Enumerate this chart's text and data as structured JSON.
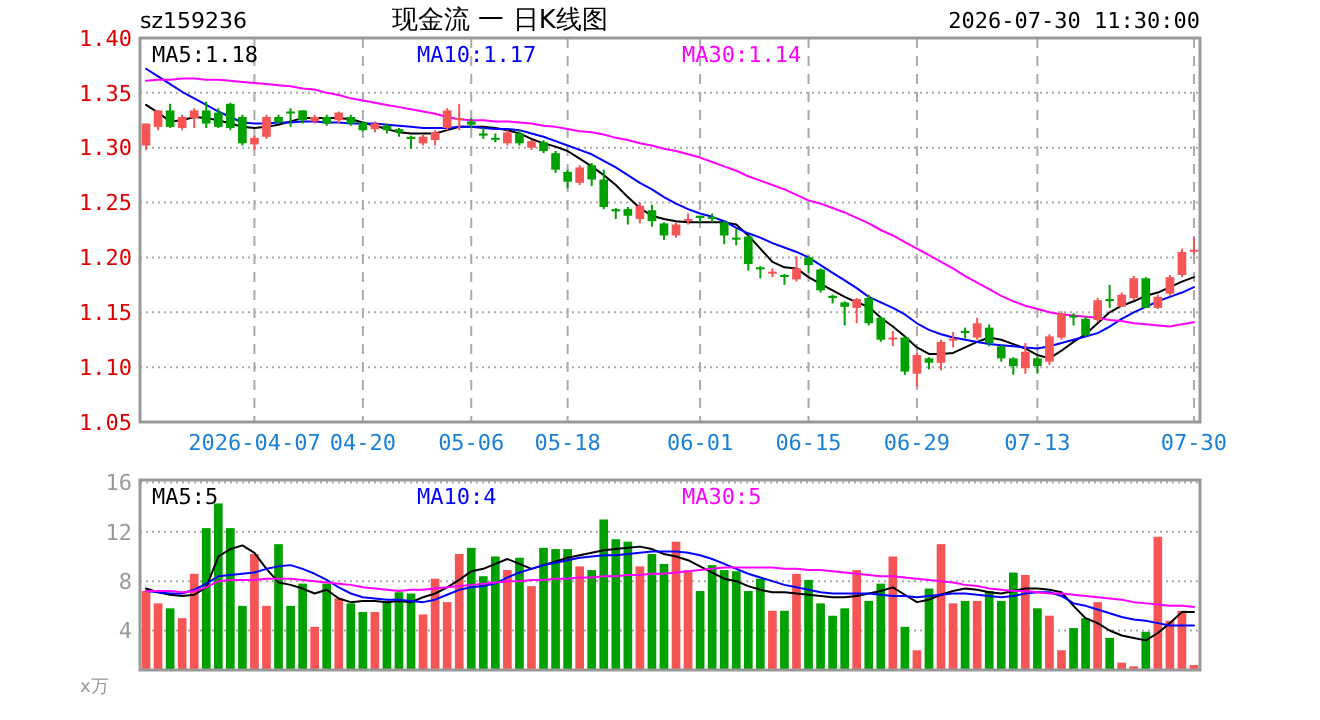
{
  "chart_data": [
    {
      "type": "candlestick",
      "title": "现金流 一 日K线图",
      "subtitle": "sz159236",
      "annotations": [
        "2026-07-30 11:30:00"
      ],
      "categories": [
        null,
        null,
        null,
        null,
        null,
        null,
        null,
        null,
        null,
        "2026-04-07",
        null,
        null,
        null,
        null,
        null,
        null,
        null,
        null,
        "04-20",
        null,
        null,
        null,
        null,
        null,
        null,
        null,
        null,
        "05-06",
        null,
        null,
        null,
        null,
        null,
        null,
        null,
        "05-18",
        null,
        null,
        null,
        null,
        null,
        null,
        null,
        null,
        null,
        null,
        "06-01",
        null,
        null,
        null,
        null,
        null,
        null,
        null,
        null,
        "06-15",
        null,
        null,
        null,
        null,
        null,
        null,
        null,
        null,
        "06-29",
        null,
        null,
        null,
        null,
        null,
        null,
        null,
        null,
        null,
        "07-13",
        null,
        null,
        null,
        null,
        null,
        null,
        null,
        null,
        null,
        null,
        null,
        null,
        "07-30"
      ],
      "ohlc": [
        [
          1.302,
          1.322,
          1.298,
          1.322
        ],
        [
          1.319,
          1.334,
          1.316,
          1.334
        ],
        [
          1.334,
          1.34,
          1.318,
          1.319
        ],
        [
          1.318,
          1.33,
          1.316,
          1.328
        ],
        [
          1.327,
          1.336,
          1.318,
          1.334
        ],
        [
          1.334,
          1.342,
          1.318,
          1.322
        ],
        [
          1.332,
          1.336,
          1.318,
          1.319
        ],
        [
          1.34,
          1.341,
          1.316,
          1.318
        ],
        [
          1.328,
          1.33,
          1.302,
          1.304
        ],
        [
          1.303,
          1.311,
          1.298,
          1.309
        ],
        [
          1.31,
          1.33,
          1.308,
          1.328
        ],
        [
          1.328,
          1.33,
          1.322,
          1.323
        ],
        [
          1.333,
          1.336,
          1.319,
          1.332
        ],
        [
          1.334,
          1.334,
          1.322,
          1.325
        ],
        [
          1.324,
          1.33,
          1.322,
          1.328
        ],
        [
          1.328,
          1.33,
          1.32,
          1.322
        ],
        [
          1.325,
          1.333,
          1.322,
          1.332
        ],
        [
          1.328,
          1.33,
          1.32,
          1.322
        ],
        [
          1.323,
          1.324,
          1.315,
          1.316
        ],
        [
          1.317,
          1.324,
          1.314,
          1.322
        ],
        [
          1.32,
          1.322,
          1.313,
          1.316
        ],
        [
          1.317,
          1.318,
          1.31,
          1.314
        ],
        [
          1.31,
          1.311,
          1.299,
          1.308
        ],
        [
          1.304,
          1.312,
          1.302,
          1.31
        ],
        [
          1.307,
          1.316,
          1.302,
          1.314
        ],
        [
          1.318,
          1.336,
          1.316,
          1.334
        ],
        [
          1.326,
          1.34,
          1.316,
          1.327
        ],
        [
          1.324,
          1.327,
          1.318,
          1.321
        ],
        [
          1.313,
          1.318,
          1.308,
          1.311
        ],
        [
          1.309,
          1.313,
          1.305,
          1.308
        ],
        [
          1.304,
          1.316,
          1.302,
          1.314
        ],
        [
          1.313,
          1.316,
          1.302,
          1.304
        ],
        [
          1.3,
          1.307,
          1.298,
          1.306
        ],
        [
          1.305,
          1.307,
          1.295,
          1.297
        ],
        [
          1.295,
          1.297,
          1.277,
          1.28
        ],
        [
          1.278,
          1.28,
          1.263,
          1.269
        ],
        [
          1.268,
          1.284,
          1.266,
          1.282
        ],
        [
          1.284,
          1.286,
          1.265,
          1.271
        ],
        [
          1.271,
          1.28,
          1.244,
          1.246
        ],
        [
          1.244,
          1.245,
          1.235,
          1.242
        ],
        [
          1.244,
          1.246,
          1.23,
          1.238
        ],
        [
          1.235,
          1.25,
          1.231,
          1.247
        ],
        [
          1.243,
          1.248,
          1.228,
          1.233
        ],
        [
          1.231,
          1.232,
          1.216,
          1.22
        ],
        [
          1.22,
          1.232,
          1.218,
          1.23
        ],
        [
          1.234,
          1.24,
          1.23,
          1.235
        ],
        [
          1.238,
          1.238,
          1.232,
          1.236
        ],
        [
          1.237,
          1.24,
          1.232,
          1.236
        ],
        [
          1.232,
          1.233,
          1.212,
          1.22
        ],
        [
          1.218,
          1.226,
          1.211,
          1.217
        ],
        [
          1.219,
          1.22,
          1.188,
          1.194
        ],
        [
          1.191,
          1.192,
          1.181,
          1.19
        ],
        [
          1.186,
          1.19,
          1.182,
          1.187
        ],
        [
          1.184,
          1.185,
          1.175,
          1.183
        ],
        [
          1.18,
          1.201,
          1.178,
          1.19
        ],
        [
          1.2,
          1.201,
          1.186,
          1.193
        ],
        [
          1.189,
          1.19,
          1.168,
          1.17
        ],
        [
          1.165,
          1.166,
          1.158,
          1.163
        ],
        [
          1.159,
          1.16,
          1.138,
          1.155
        ],
        [
          1.154,
          1.163,
          1.14,
          1.162
        ],
        [
          1.163,
          1.166,
          1.138,
          1.14
        ],
        [
          1.145,
          1.146,
          1.123,
          1.125
        ],
        [
          1.126,
          1.133,
          1.119,
          1.127
        ],
        [
          1.127,
          1.128,
          1.093,
          1.096
        ],
        [
          1.094,
          1.113,
          1.082,
          1.111
        ],
        [
          1.108,
          1.109,
          1.098,
          1.104
        ],
        [
          1.104,
          1.125,
          1.097,
          1.123
        ],
        [
          1.125,
          1.132,
          1.118,
          1.126
        ],
        [
          1.133,
          1.136,
          1.126,
          1.132
        ],
        [
          1.127,
          1.145,
          1.125,
          1.14
        ],
        [
          1.136,
          1.139,
          1.119,
          1.122
        ],
        [
          1.119,
          1.12,
          1.105,
          1.108
        ],
        [
          1.108,
          1.109,
          1.093,
          1.101
        ],
        [
          1.099,
          1.122,
          1.094,
          1.114
        ],
        [
          1.108,
          1.11,
          1.094,
          1.101
        ],
        [
          1.105,
          1.13,
          1.102,
          1.128
        ],
        [
          1.127,
          1.151,
          1.125,
          1.149
        ],
        [
          1.147,
          1.149,
          1.138,
          1.146
        ],
        [
          1.144,
          1.146,
          1.128,
          1.129
        ],
        [
          1.143,
          1.163,
          1.141,
          1.161
        ],
        [
          1.162,
          1.175,
          1.154,
          1.161
        ],
        [
          1.155,
          1.168,
          1.155,
          1.166
        ],
        [
          1.163,
          1.183,
          1.161,
          1.181
        ],
        [
          1.181,
          1.182,
          1.154,
          1.154
        ],
        [
          1.154,
          1.166,
          1.153,
          1.164
        ],
        [
          1.167,
          1.184,
          1.165,
          1.182
        ],
        [
          1.184,
          1.208,
          1.182,
          1.205
        ],
        [
          1.206,
          1.218,
          1.203,
          1.207
        ]
      ],
      "colors": [
        "#f65555",
        "#f65555",
        "#00a000",
        "#f65555",
        "#f65555",
        "#00a000",
        "#00a000",
        "#00a000",
        "#00a000",
        "#f65555",
        "#f65555",
        "#00a000",
        "#00a000",
        "#00a000",
        "#f65555",
        "#00a000",
        "#f65555",
        "#00a000",
        "#00a000",
        "#f65555",
        "#00a000",
        "#00a000",
        "#00a000",
        "#f65555",
        "#f65555",
        "#f65555",
        "#f65555",
        "#00a000",
        "#00a000",
        "#00a000",
        "#f65555",
        "#00a000",
        "#f65555",
        "#00a000",
        "#00a000",
        "#00a000",
        "#f65555",
        "#00a000",
        "#00a000",
        "#00a000",
        "#00a000",
        "#f65555",
        "#00a000",
        "#00a000",
        "#f65555",
        "#f65555",
        "#00a000",
        "#00a000",
        "#00a000",
        "#00a000",
        "#00a000",
        "#00a000",
        "#f65555",
        "#00a000",
        "#f65555",
        "#00a000",
        "#00a000",
        "#00a000",
        "#00a000",
        "#f65555",
        "#00a000",
        "#00a000",
        "#f65555",
        "#00a000",
        "#f65555",
        "#00a000",
        "#f65555",
        "#f65555",
        "#00a000",
        "#f65555",
        "#00a000",
        "#00a000",
        "#00a000",
        "#f65555",
        "#00a000",
        "#f65555",
        "#f65555",
        "#00a000",
        "#00a000",
        "#f65555",
        "#00a000",
        "#f65555",
        "#f65555",
        "#00a000",
        "#f65555",
        "#f65555",
        "#f65555",
        "#f65555"
      ],
      "series": [
        {
          "name": "MA5:1.18",
          "type": "line",
          "color": "#000000",
          "values": [
            1.339,
            1.332,
            1.324,
            1.325,
            1.328,
            1.327,
            1.325,
            1.322,
            1.319,
            1.318,
            1.319,
            1.321,
            1.324,
            1.327,
            1.327,
            1.327,
            1.327,
            1.326,
            1.323,
            1.32,
            1.317,
            1.314,
            1.313,
            1.313,
            1.313,
            1.316,
            1.319,
            1.319,
            1.319,
            1.318,
            1.316,
            1.313,
            1.308,
            1.304,
            1.301,
            1.297,
            1.29,
            1.283,
            1.275,
            1.266,
            1.255,
            1.245,
            1.238,
            1.235,
            1.233,
            1.232,
            1.232,
            1.232,
            1.232,
            1.23,
            1.22,
            1.208,
            1.196,
            1.191,
            1.19,
            1.182,
            1.176,
            1.17,
            1.164,
            1.159,
            1.155,
            1.145,
            1.137,
            1.128,
            1.118,
            1.112,
            1.112,
            1.113,
            1.118,
            1.123,
            1.127,
            1.125,
            1.121,
            1.117,
            1.111,
            1.108,
            1.115,
            1.123,
            1.13,
            1.14,
            1.15,
            1.156,
            1.16,
            1.165,
            1.168,
            1.173,
            1.178,
            1.182
          ]
        },
        {
          "name": "MA10:1.17",
          "type": "line",
          "color": "#0000ff",
          "values": [
            1.372,
            1.365,
            1.358,
            1.351,
            1.345,
            1.339,
            1.333,
            1.328,
            1.323,
            1.322,
            1.322,
            1.323,
            1.323,
            1.324,
            1.324,
            1.323,
            1.323,
            1.322,
            1.322,
            1.322,
            1.321,
            1.32,
            1.319,
            1.318,
            1.318,
            1.318,
            1.319,
            1.319,
            1.318,
            1.317,
            1.317,
            1.316,
            1.313,
            1.31,
            1.306,
            1.302,
            1.298,
            1.294,
            1.288,
            1.282,
            1.275,
            1.268,
            1.262,
            1.255,
            1.249,
            1.244,
            1.24,
            1.237,
            1.233,
            1.227,
            1.222,
            1.218,
            1.213,
            1.209,
            1.205,
            1.2,
            1.193,
            1.186,
            1.179,
            1.172,
            1.164,
            1.159,
            1.154,
            1.148,
            1.14,
            1.134,
            1.13,
            1.127,
            1.125,
            1.123,
            1.121,
            1.12,
            1.119,
            1.118,
            1.117,
            1.119,
            1.122,
            1.125,
            1.128,
            1.131,
            1.137,
            1.144,
            1.15,
            1.155,
            1.16,
            1.164,
            1.168,
            1.173
          ]
        },
        {
          "name": "MA30:1.14",
          "type": "line",
          "color": "#ff00ff",
          "values": [
            1.361,
            1.362,
            1.362,
            1.363,
            1.363,
            1.362,
            1.362,
            1.361,
            1.36,
            1.359,
            1.358,
            1.357,
            1.356,
            1.354,
            1.353,
            1.35,
            1.348,
            1.345,
            1.343,
            1.341,
            1.339,
            1.337,
            1.335,
            1.333,
            1.331,
            1.328,
            1.326,
            1.325,
            1.325,
            1.324,
            1.324,
            1.323,
            1.322,
            1.32,
            1.319,
            1.317,
            1.315,
            1.314,
            1.312,
            1.309,
            1.307,
            1.304,
            1.302,
            1.299,
            1.297,
            1.294,
            1.291,
            1.287,
            1.283,
            1.279,
            1.274,
            1.27,
            1.266,
            1.262,
            1.257,
            1.252,
            1.249,
            1.245,
            1.241,
            1.236,
            1.231,
            1.225,
            1.22,
            1.214,
            1.208,
            1.202,
            1.196,
            1.19,
            1.183,
            1.177,
            1.171,
            1.165,
            1.16,
            1.156,
            1.153,
            1.15,
            1.148,
            1.147,
            1.146,
            1.145,
            1.143,
            1.142,
            1.14,
            1.139,
            1.138,
            1.137,
            1.139,
            1.141
          ]
        }
      ],
      "ylim": [
        1.05,
        1.4
      ],
      "yticks": [
        {
          "value": 1.05,
          "label": "1.05"
        },
        {
          "value": 1.1,
          "label": "1.10"
        },
        {
          "value": 1.15,
          "label": "1.15"
        },
        {
          "value": 1.2,
          "label": "1.20"
        },
        {
          "value": 1.25,
          "label": "1.25"
        },
        {
          "value": 1.3,
          "label": "1.30"
        },
        {
          "value": 1.35,
          "label": "1.35"
        },
        {
          "value": 1.4,
          "label": "1.40"
        }
      ],
      "grid": true,
      "legend": "top"
    },
    {
      "type": "bar",
      "ylabel": "x万",
      "tick_labels": "y",
      "categories": [
        null,
        null,
        null,
        null,
        null,
        null,
        null,
        null,
        null,
        null,
        null,
        null,
        null,
        null,
        null,
        null,
        null,
        null,
        null,
        null,
        null,
        null,
        null,
        null,
        null,
        null,
        null,
        null,
        null,
        null,
        null,
        null,
        null,
        null,
        null,
        null,
        null,
        null,
        null,
        null,
        null,
        null,
        null,
        null,
        null,
        null,
        null,
        null,
        null,
        null,
        null,
        null,
        null,
        null,
        null,
        null,
        null,
        null,
        null,
        null,
        null,
        null,
        null,
        null,
        null,
        null,
        null,
        null,
        null,
        null,
        null,
        null,
        null,
        null,
        null,
        null,
        null,
        null,
        null,
        null,
        null,
        null,
        null,
        null,
        null,
        null,
        null,
        null
      ],
      "series": [
        {
          "type": "bar",
          "values": [
            7.2,
            6.2,
            5.8,
            5.0,
            8.6,
            12.3,
            14.3,
            12.3,
            6.0,
            10.2,
            6.0,
            11.0,
            6.0,
            7.8,
            4.3,
            7.8,
            6.6,
            6.2,
            5.5,
            5.5,
            6.3,
            7.1,
            7.0,
            5.3,
            8.2,
            6.3,
            10.2,
            10.7,
            8.4,
            10.0,
            8.9,
            9.9,
            7.6,
            10.7,
            10.6,
            10.6,
            9.2,
            8.9,
            13.0,
            11.4,
            11.2,
            9.2,
            10.2,
            9.4,
            11.2,
            8.9,
            7.2,
            9.3,
            8.9,
            8.8,
            7.2,
            8.2,
            5.6,
            5.6,
            8.6,
            8.1,
            6.2,
            5.2,
            5.8,
            8.9,
            6.4,
            7.8,
            10.0,
            4.3,
            2.4,
            7.4,
            11.0,
            6.2,
            6.4,
            6.4,
            7.2,
            6.4,
            8.7,
            8.5,
            5.8,
            5.2,
            2.4,
            4.2,
            5.0,
            6.3,
            3.4,
            1.4,
            1.1,
            3.9,
            11.6,
            4.8,
            5.6,
            1.2
          ],
          "colors": [
            "#f65555",
            "#f65555",
            "#00a000",
            "#f65555",
            "#f65555",
            "#00a000",
            "#00a000",
            "#00a000",
            "#00a000",
            "#f65555",
            "#f65555",
            "#00a000",
            "#00a000",
            "#00a000",
            "#f65555",
            "#00a000",
            "#f65555",
            "#00a000",
            "#00a000",
            "#f65555",
            "#00a000",
            "#00a000",
            "#00a000",
            "#f65555",
            "#f65555",
            "#f65555",
            "#f65555",
            "#00a000",
            "#00a000",
            "#00a000",
            "#f65555",
            "#00a000",
            "#f65555",
            "#00a000",
            "#00a000",
            "#00a000",
            "#f65555",
            "#00a000",
            "#00a000",
            "#00a000",
            "#00a000",
            "#f65555",
            "#00a000",
            "#00a000",
            "#f65555",
            "#f65555",
            "#00a000",
            "#00a000",
            "#00a000",
            "#00a000",
            "#00a000",
            "#00a000",
            "#f65555",
            "#00a000",
            "#f65555",
            "#00a000",
            "#00a000",
            "#00a000",
            "#00a000",
            "#f65555",
            "#00a000",
            "#00a000",
            "#f65555",
            "#00a000",
            "#f65555",
            "#00a000",
            "#f65555",
            "#f65555",
            "#00a000",
            "#f65555",
            "#00a000",
            "#00a000",
            "#00a000",
            "#f65555",
            "#00a000",
            "#f65555",
            "#f65555",
            "#00a000",
            "#00a000",
            "#f65555",
            "#00a000",
            "#f65555",
            "#f65555",
            "#00a000",
            "#f65555",
            "#f65555",
            "#f65555",
            "#f65555"
          ]
        },
        {
          "name": "MA5:5",
          "type": "line",
          "color": "#000000",
          "values": [
            7.4,
            7.1,
            6.9,
            6.8,
            6.9,
            7.5,
            10.0,
            10.6,
            10.9,
            10.3,
            9.0,
            7.9,
            7.7,
            7.4,
            7.0,
            7.3,
            6.6,
            6.3,
            6.4,
            6.4,
            6.3,
            6.4,
            6.3,
            6.7,
            7.0,
            7.5,
            8.1,
            8.8,
            9.0,
            9.4,
            9.8,
            9.4,
            9.0,
            9.3,
            9.6,
            9.9,
            10.1,
            10.3,
            10.5,
            10.6,
            10.7,
            10.8,
            10.6,
            10.2,
            10.0,
            9.7,
            9.2,
            8.7,
            8.2,
            8.0,
            7.6,
            7.3,
            7.1,
            7.1,
            7.0,
            6.9,
            6.8,
            6.7,
            6.7,
            6.8,
            7.0,
            7.2,
            7.5,
            6.9,
            6.3,
            6.5,
            6.9,
            7.2,
            7.4,
            7.3,
            7.1,
            7.0,
            7.2,
            7.4,
            7.4,
            7.3,
            7.1,
            6.0,
            5.0,
            4.6,
            4.0,
            3.6,
            3.4,
            3.2,
            3.8,
            4.6,
            5.5,
            5.5
          ]
        },
        {
          "name": "MA10:4",
          "type": "line",
          "color": "#0000ff",
          "values": [
            7.2,
            7.1,
            7.0,
            7.0,
            7.3,
            7.8,
            8.4,
            8.5,
            8.6,
            8.7,
            9.0,
            9.2,
            9.3,
            9.0,
            8.6,
            8.1,
            7.5,
            7.0,
            6.7,
            6.6,
            6.5,
            6.5,
            6.4,
            6.3,
            6.5,
            6.9,
            7.3,
            7.5,
            7.6,
            7.8,
            8.3,
            8.7,
            9.0,
            9.3,
            9.5,
            9.7,
            9.9,
            10.0,
            10.1,
            10.1,
            10.2,
            10.3,
            10.4,
            10.4,
            10.4,
            10.3,
            10.1,
            9.8,
            9.4,
            9.0,
            8.6,
            8.3,
            8.0,
            7.7,
            7.5,
            7.3,
            7.1,
            7.0,
            7.0,
            7.0,
            7.0,
            6.9,
            6.8,
            6.8,
            6.7,
            6.8,
            6.9,
            7.0,
            7.0,
            6.9,
            6.8,
            6.7,
            6.8,
            7.0,
            7.1,
            7.1,
            6.8,
            6.2,
            6.0,
            5.7,
            5.4,
            5.1,
            4.9,
            4.8,
            4.6,
            4.4,
            4.4,
            4.4
          ]
        },
        {
          "name": "MA30:5",
          "type": "line",
          "color": "#ff00ff",
          "values": [
            7.2,
            7.2,
            7.2,
            7.1,
            7.2,
            7.5,
            8.0,
            8.1,
            8.1,
            8.1,
            8.2,
            8.2,
            8.2,
            8.1,
            8.0,
            7.9,
            7.8,
            7.7,
            7.5,
            7.4,
            7.3,
            7.2,
            7.3,
            7.3,
            7.4,
            7.5,
            7.6,
            7.7,
            7.8,
            7.9,
            8.0,
            8.0,
            8.1,
            8.1,
            8.2,
            8.2,
            8.3,
            8.3,
            8.4,
            8.4,
            8.5,
            8.5,
            8.6,
            8.6,
            8.7,
            8.8,
            8.9,
            9.0,
            9.1,
            9.1,
            9.1,
            9.1,
            9.1,
            9.0,
            9.0,
            8.9,
            8.9,
            8.8,
            8.7,
            8.6,
            8.5,
            8.4,
            8.4,
            8.3,
            8.2,
            8.1,
            8.0,
            7.9,
            7.7,
            7.6,
            7.4,
            7.3,
            7.2,
            7.2,
            7.1,
            7.0,
            7.0,
            6.9,
            6.8,
            6.7,
            6.6,
            6.5,
            6.3,
            6.2,
            6.1,
            6.0,
            6.0,
            5.9
          ]
        }
      ],
      "ylim": [
        0.8,
        16.2
      ],
      "yticks": [
        4,
        8,
        12,
        16
      ],
      "grid": "y",
      "legend": "top"
    }
  ]
}
